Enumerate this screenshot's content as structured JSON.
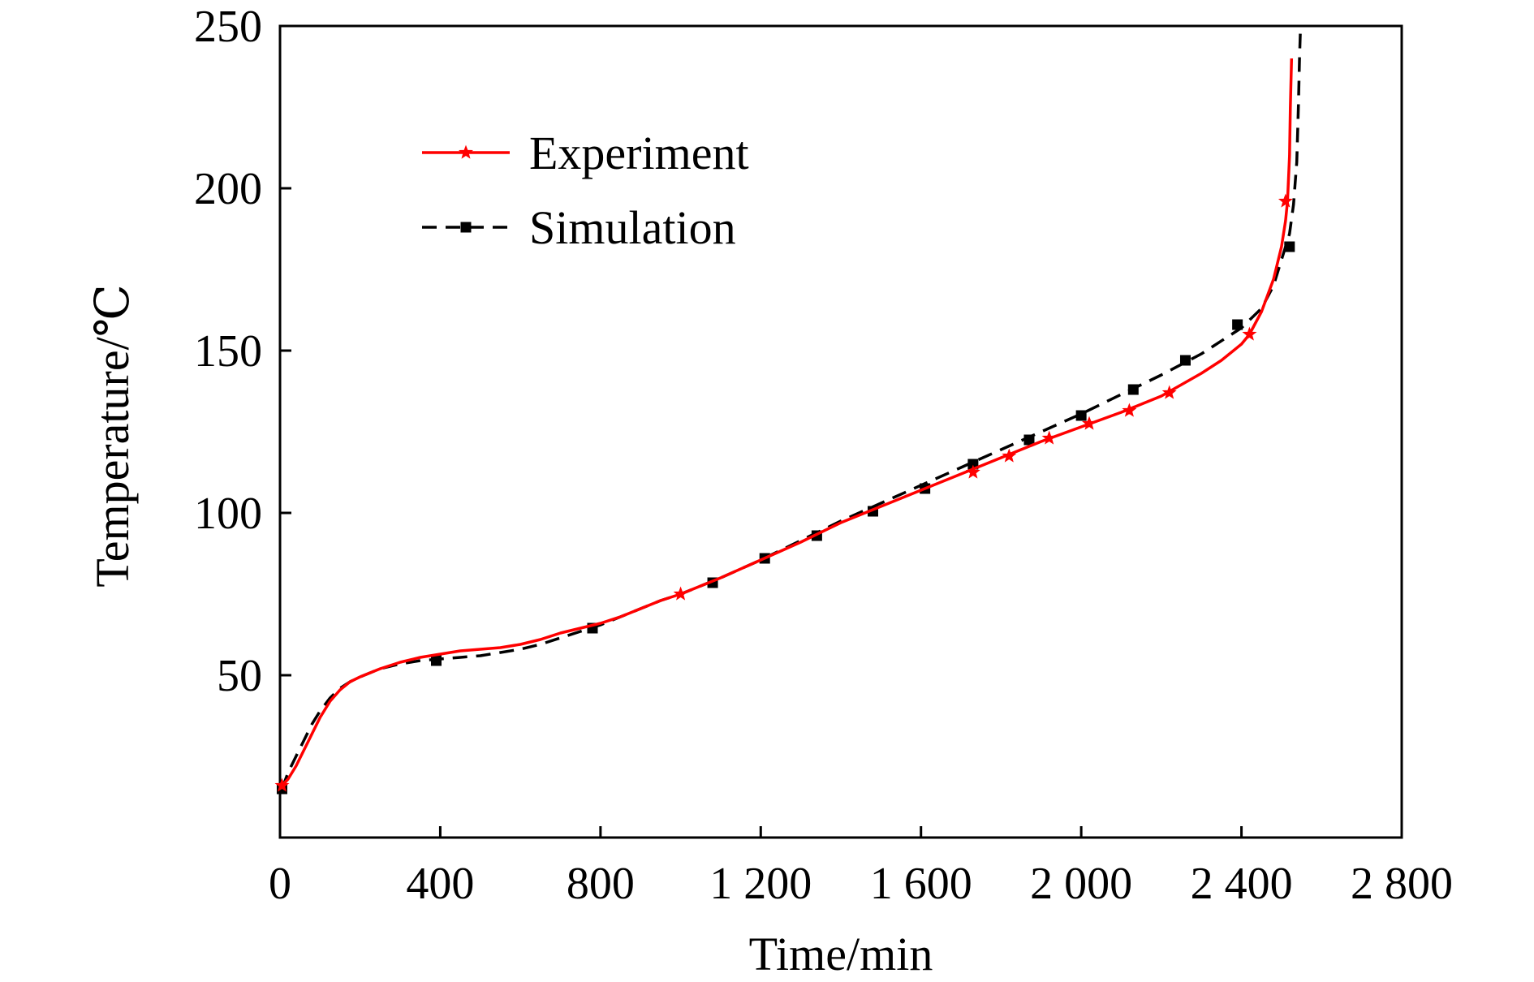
{
  "chart_data": {
    "type": "line",
    "title": "",
    "xlabel": "Time/min",
    "ylabel": "Temperature/℃",
    "xlim": [
      0,
      2800
    ],
    "ylim": [
      0,
      250
    ],
    "x_ticks": [
      {
        "value": 0,
        "label": "0"
      },
      {
        "value": 400,
        "label": "400"
      },
      {
        "value": 800,
        "label": "800"
      },
      {
        "value": 1200,
        "label": "1 200"
      },
      {
        "value": 1600,
        "label": "1 600"
      },
      {
        "value": 2000,
        "label": "2 000"
      },
      {
        "value": 2400,
        "label": "2 400"
      },
      {
        "value": 2800,
        "label": "2 800"
      }
    ],
    "y_ticks": [
      {
        "value": 50,
        "label": "50"
      },
      {
        "value": 100,
        "label": "100"
      },
      {
        "value": 150,
        "label": "150"
      },
      {
        "value": 200,
        "label": "200"
      },
      {
        "value": 250,
        "label": "250"
      }
    ],
    "grid": false,
    "legend_position": "top-left",
    "series": [
      {
        "name": "Experiment",
        "color": "#ff0000",
        "line_style": "solid",
        "marker": "star",
        "x": [
          5,
          20,
          40,
          60,
          80,
          100,
          125,
          150,
          175,
          200,
          250,
          300,
          350,
          400,
          450,
          500,
          550,
          600,
          650,
          700,
          750,
          800,
          850,
          900,
          950,
          1000,
          1100,
          1200,
          1300,
          1400,
          1500,
          1600,
          1700,
          1800,
          1900,
          2000,
          2100,
          2200,
          2300,
          2350,
          2400,
          2420,
          2450,
          2480,
          2500,
          2510,
          2515,
          2520,
          2522,
          2525
        ],
        "y": [
          16,
          18,
          22,
          27,
          32,
          37,
          42,
          45.5,
          48,
          49.5,
          52,
          54,
          55.5,
          56.5,
          57.5,
          58,
          58.5,
          59.5,
          61,
          63,
          64.5,
          66,
          68,
          70.5,
          73,
          75,
          80,
          85.5,
          91,
          97,
          102,
          107,
          112,
          117,
          122,
          126.5,
          131,
          136,
          143,
          147,
          152,
          155,
          162,
          172,
          182,
          190,
          196,
          210,
          225,
          240
        ],
        "marker_x": [
          5,
          1000,
          1730,
          1820,
          1920,
          2020,
          2120,
          2220,
          2420,
          2510
        ],
        "marker_y": [
          16,
          75,
          112.5,
          117.5,
          123,
          127.5,
          131.5,
          137,
          155,
          196
        ]
      },
      {
        "name": "Simulation",
        "color": "#000000",
        "line_style": "dashed",
        "marker": "square",
        "x": [
          5,
          20,
          40,
          60,
          80,
          100,
          125,
          150,
          175,
          200,
          250,
          300,
          350,
          400,
          450,
          500,
          550,
          600,
          650,
          700,
          750,
          800,
          850,
          900,
          950,
          1000,
          1100,
          1200,
          1300,
          1400,
          1500,
          1600,
          1700,
          1800,
          1900,
          2000,
          2100,
          2200,
          2300,
          2400,
          2450,
          2480,
          2500,
          2510,
          2520,
          2530,
          2538,
          2542,
          2545,
          2547,
          2548
        ],
        "y": [
          15,
          20,
          25,
          30,
          35,
          39,
          43,
          46,
          48,
          49.5,
          52,
          53.5,
          54.5,
          55,
          55.5,
          56,
          57,
          58,
          59.5,
          61.5,
          63.5,
          65.5,
          68,
          70.5,
          73,
          75,
          80,
          85.5,
          91.5,
          97.5,
          103,
          108.5,
          114,
          119.5,
          125,
          130.5,
          136.5,
          142.5,
          149,
          157,
          163,
          170,
          178,
          182,
          186,
          195,
          208,
          225,
          240,
          248,
          250
        ],
        "marker_x": [
          5,
          390,
          780,
          1080,
          1210,
          1340,
          1480,
          1610,
          1730,
          1870,
          2000,
          2130,
          2260,
          2390,
          2520
        ],
        "marker_y": [
          15,
          54.5,
          64.5,
          78.5,
          86,
          93,
          100.5,
          107.5,
          115,
          122.5,
          130,
          138,
          147,
          158,
          182
        ]
      }
    ]
  }
}
